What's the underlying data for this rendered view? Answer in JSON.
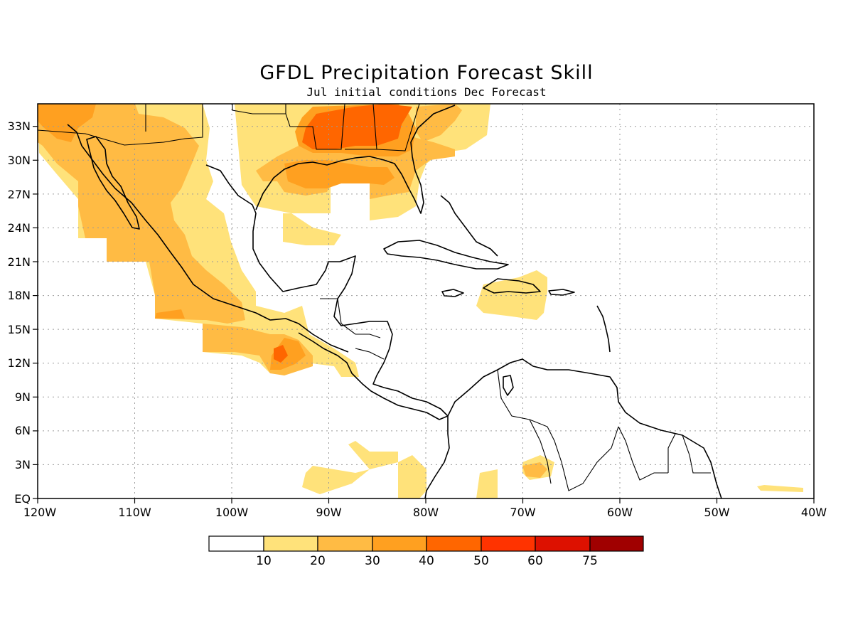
{
  "title": "GFDL Precipitation Forecast Skill",
  "subtitle": "Jul initial conditions  Dec Forecast",
  "map": {
    "lon_range": [
      -120,
      -40
    ],
    "lat_range": [
      0,
      35
    ],
    "x_ticks": [
      "120W",
      "110W",
      "100W",
      "90W",
      "80W",
      "70W",
      "60W",
      "50W",
      "40W"
    ],
    "y_ticks": [
      "EQ",
      "3N",
      "6N",
      "9N",
      "12N",
      "15N",
      "18N",
      "21N",
      "24N",
      "27N",
      "30N",
      "33N"
    ],
    "grid": "dotted"
  },
  "colorbar": {
    "labels": [
      "10",
      "20",
      "30",
      "40",
      "50",
      "60",
      "75"
    ],
    "colors": [
      "#ffffff",
      "#ffe27a",
      "#ffbb44",
      "#ffa020",
      "#ff6600",
      "#ff3300",
      "#dd1100",
      "#a00000"
    ]
  }
}
